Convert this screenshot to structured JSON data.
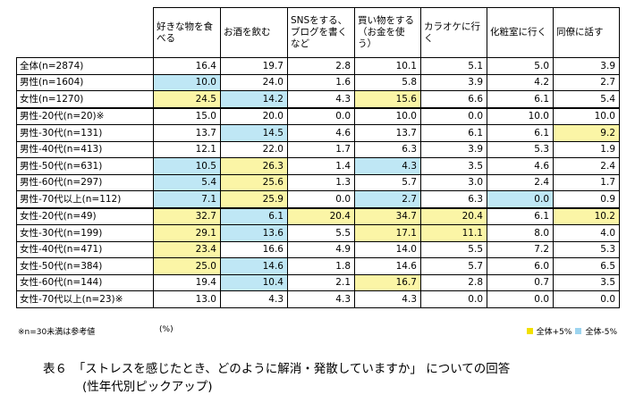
{
  "table": {
    "headers": [
      "好きな物を食べる",
      "お酒を飲む",
      "SNSをする、ブログを書くなど",
      "買い物をする（お金を使う）",
      "カラオケに行く",
      "化粧室に行く",
      "同僚に話す"
    ],
    "groups": [
      {
        "rows": [
          {
            "label": "全体(n=2874)",
            "cells": [
              {
                "v": "16.4",
                "h": ""
              },
              {
                "v": "19.7",
                "h": ""
              },
              {
                "v": "2.8",
                "h": ""
              },
              {
                "v": "10.1",
                "h": ""
              },
              {
                "v": "5.1",
                "h": ""
              },
              {
                "v": "5.0",
                "h": ""
              },
              {
                "v": "3.9",
                "h": ""
              }
            ]
          },
          {
            "label": "男性(n=1604)",
            "cells": [
              {
                "v": "10.0",
                "h": "lo"
              },
              {
                "v": "24.0",
                "h": ""
              },
              {
                "v": "1.6",
                "h": ""
              },
              {
                "v": "5.8",
                "h": ""
              },
              {
                "v": "3.9",
                "h": ""
              },
              {
                "v": "4.2",
                "h": ""
              },
              {
                "v": "2.7",
                "h": ""
              }
            ]
          },
          {
            "label": "女性(n=1270)",
            "cells": [
              {
                "v": "24.5",
                "h": "hi"
              },
              {
                "v": "14.2",
                "h": "lo"
              },
              {
                "v": "4.3",
                "h": ""
              },
              {
                "v": "15.6",
                "h": "hi"
              },
              {
                "v": "6.6",
                "h": ""
              },
              {
                "v": "6.1",
                "h": ""
              },
              {
                "v": "5.4",
                "h": ""
              }
            ]
          }
        ]
      },
      {
        "rows": [
          {
            "label": "男性-20代(n=20)※",
            "cells": [
              {
                "v": "15.0",
                "h": ""
              },
              {
                "v": "20.0",
                "h": ""
              },
              {
                "v": "0.0",
                "h": ""
              },
              {
                "v": "10.0",
                "h": ""
              },
              {
                "v": "0.0",
                "h": ""
              },
              {
                "v": "10.0",
                "h": ""
              },
              {
                "v": "10.0",
                "h": ""
              }
            ]
          },
          {
            "label": "男性-30代(n=131)",
            "cells": [
              {
                "v": "13.7",
                "h": ""
              },
              {
                "v": "14.5",
                "h": "lo"
              },
              {
                "v": "4.6",
                "h": ""
              },
              {
                "v": "13.7",
                "h": ""
              },
              {
                "v": "6.1",
                "h": ""
              },
              {
                "v": "6.1",
                "h": ""
              },
              {
                "v": "9.2",
                "h": "hi"
              }
            ]
          },
          {
            "label": "男性-40代(n=413)",
            "cells": [
              {
                "v": "12.1",
                "h": ""
              },
              {
                "v": "22.0",
                "h": ""
              },
              {
                "v": "1.7",
                "h": ""
              },
              {
                "v": "6.3",
                "h": ""
              },
              {
                "v": "3.9",
                "h": ""
              },
              {
                "v": "5.3",
                "h": ""
              },
              {
                "v": "1.9",
                "h": ""
              }
            ]
          },
          {
            "label": "男性-50代(n=631)",
            "cells": [
              {
                "v": "10.5",
                "h": "lo"
              },
              {
                "v": "26.3",
                "h": "hi"
              },
              {
                "v": "1.4",
                "h": ""
              },
              {
                "v": "4.3",
                "h": "lo"
              },
              {
                "v": "3.5",
                "h": ""
              },
              {
                "v": "4.6",
                "h": ""
              },
              {
                "v": "2.4",
                "h": ""
              }
            ]
          },
          {
            "label": "男性-60代(n=297)",
            "cells": [
              {
                "v": "5.4",
                "h": "lo"
              },
              {
                "v": "25.6",
                "h": "hi"
              },
              {
                "v": "1.3",
                "h": ""
              },
              {
                "v": "5.7",
                "h": ""
              },
              {
                "v": "3.0",
                "h": ""
              },
              {
                "v": "2.4",
                "h": ""
              },
              {
                "v": "1.7",
                "h": ""
              }
            ]
          },
          {
            "label": "男性-70代以上(n=112)",
            "cells": [
              {
                "v": "7.1",
                "h": "lo"
              },
              {
                "v": "25.9",
                "h": "hi"
              },
              {
                "v": "0.0",
                "h": ""
              },
              {
                "v": "2.7",
                "h": "lo"
              },
              {
                "v": "6.3",
                "h": ""
              },
              {
                "v": "0.0",
                "h": "lo"
              },
              {
                "v": "0.9",
                "h": ""
              }
            ]
          }
        ]
      },
      {
        "rows": [
          {
            "label": "女性-20代(n=49)",
            "cells": [
              {
                "v": "32.7",
                "h": "hi"
              },
              {
                "v": "6.1",
                "h": "lo"
              },
              {
                "v": "20.4",
                "h": "hi"
              },
              {
                "v": "34.7",
                "h": "hi"
              },
              {
                "v": "20.4",
                "h": "hi"
              },
              {
                "v": "6.1",
                "h": ""
              },
              {
                "v": "10.2",
                "h": "hi"
              }
            ]
          },
          {
            "label": "女性-30代(n=199)",
            "cells": [
              {
                "v": "29.1",
                "h": "hi"
              },
              {
                "v": "13.6",
                "h": "lo"
              },
              {
                "v": "5.5",
                "h": ""
              },
              {
                "v": "17.1",
                "h": "hi"
              },
              {
                "v": "11.1",
                "h": "hi"
              },
              {
                "v": "8.0",
                "h": ""
              },
              {
                "v": "4.0",
                "h": ""
              }
            ]
          },
          {
            "label": "女性-40代(n=471)",
            "cells": [
              {
                "v": "23.4",
                "h": "hi"
              },
              {
                "v": "16.6",
                "h": ""
              },
              {
                "v": "4.9",
                "h": ""
              },
              {
                "v": "14.0",
                "h": ""
              },
              {
                "v": "5.5",
                "h": ""
              },
              {
                "v": "7.2",
                "h": ""
              },
              {
                "v": "5.3",
                "h": ""
              }
            ]
          },
          {
            "label": "女性-50代(n=384)",
            "cells": [
              {
                "v": "25.0",
                "h": "hi"
              },
              {
                "v": "14.6",
                "h": "lo"
              },
              {
                "v": "1.8",
                "h": ""
              },
              {
                "v": "14.6",
                "h": ""
              },
              {
                "v": "5.7",
                "h": ""
              },
              {
                "v": "6.0",
                "h": ""
              },
              {
                "v": "6.5",
                "h": ""
              }
            ]
          },
          {
            "label": "女性-60代(n=144)",
            "cells": [
              {
                "v": "19.4",
                "h": ""
              },
              {
                "v": "10.4",
                "h": "lo"
              },
              {
                "v": "2.1",
                "h": ""
              },
              {
                "v": "16.7",
                "h": "hi"
              },
              {
                "v": "2.8",
                "h": ""
              },
              {
                "v": "0.7",
                "h": ""
              },
              {
                "v": "3.5",
                "h": ""
              }
            ]
          },
          {
            "label": "女性-70代以上(n=23)※",
            "cells": [
              {
                "v": "13.0",
                "h": ""
              },
              {
                "v": "4.3",
                "h": ""
              },
              {
                "v": "4.3",
                "h": ""
              },
              {
                "v": "4.3",
                "h": ""
              },
              {
                "v": "0.0",
                "h": ""
              },
              {
                "v": "0.0",
                "h": ""
              },
              {
                "v": "0.0",
                "h": ""
              }
            ]
          }
        ]
      }
    ]
  },
  "footnote": "※n=30未満は参考値",
  "unit_note": "(%)",
  "legend": {
    "high_label": "全体+5%",
    "low_label": "全体-5%",
    "high_color": "#f2e000",
    "low_color": "#9cd4ef"
  },
  "caption": {
    "line1": "表６　「ストレスを感じたとき、どのように解消・発散していますか」 についての回答",
    "line2": "(性年代別ピックアップ)"
  }
}
